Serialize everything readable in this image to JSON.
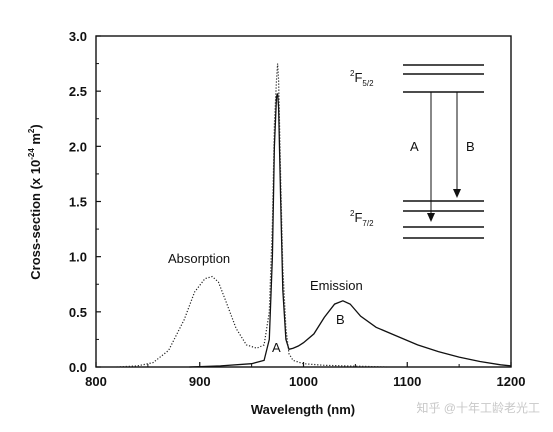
{
  "chart_data": {
    "type": "line",
    "xlabel": "Wavelength (nm)",
    "ylabel_parts": {
      "main": "Cross-section (x 10",
      "exponent": "-24",
      "unit": " m",
      "unit_exponent": "2",
      "close": ")"
    },
    "xlim": [
      800,
      1200
    ],
    "ylim": [
      0,
      3.0
    ],
    "x_ticks": [
      800,
      900,
      1000,
      1100,
      1200
    ],
    "x_tick_labels": [
      "800",
      "900",
      "1000",
      "1100",
      "1200"
    ],
    "y_ticks": [
      0,
      0.5,
      1.0,
      1.5,
      2.0,
      2.5,
      3.0
    ],
    "y_tick_labels": [
      "0.0",
      "0.5",
      "1.0",
      "1.5",
      "2.0",
      "2.5",
      "3.0"
    ],
    "grid": false,
    "legend": "none",
    "series": [
      {
        "name": "Absorption",
        "style": "dotted",
        "x": [
          820,
          840,
          855,
          870,
          885,
          895,
          905,
          912,
          918,
          925,
          935,
          945,
          955,
          962,
          967,
          970,
          972,
          974,
          975,
          976,
          978,
          980,
          983,
          986,
          990,
          1000,
          1020,
          1040,
          1060,
          1080
        ],
        "y": [
          0.0,
          0.01,
          0.04,
          0.15,
          0.43,
          0.68,
          0.8,
          0.82,
          0.77,
          0.6,
          0.35,
          0.2,
          0.17,
          0.2,
          0.5,
          1.3,
          2.2,
          2.6,
          2.75,
          2.6,
          1.7,
          0.9,
          0.35,
          0.12,
          0.06,
          0.03,
          0.015,
          0.01,
          0.005,
          0.0
        ]
      },
      {
        "name": "Emission",
        "style": "solid",
        "x": [
          890,
          920,
          950,
          962,
          967,
          970,
          972,
          974,
          975,
          976,
          978,
          980,
          983,
          986,
          990,
          995,
          1000,
          1010,
          1020,
          1030,
          1038,
          1045,
          1055,
          1070,
          1090,
          1110,
          1130,
          1150,
          1170,
          1190,
          1200
        ],
        "y": [
          0.0,
          0.01,
          0.03,
          0.06,
          0.25,
          1.0,
          2.0,
          2.45,
          2.48,
          2.35,
          1.5,
          0.7,
          0.25,
          0.16,
          0.17,
          0.19,
          0.22,
          0.3,
          0.45,
          0.57,
          0.6,
          0.57,
          0.46,
          0.36,
          0.28,
          0.2,
          0.14,
          0.09,
          0.05,
          0.02,
          0.01
        ]
      }
    ],
    "annotations": {
      "absorption_label": "Absorption",
      "emission_label": "Emission",
      "peak_a": "A",
      "peak_b": "B"
    },
    "inset": {
      "upper_level_sup": "2",
      "upper_level_main": "F",
      "upper_level_sub": "5/2",
      "lower_level_sup": "2",
      "lower_level_main": "F",
      "lower_level_sub": "7/2",
      "transition_a": "A",
      "transition_b": "B"
    }
  },
  "watermark": "知乎 @十年工龄老光工"
}
